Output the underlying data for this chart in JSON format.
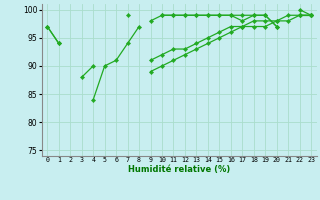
{
  "xlabel": "Humidité relative (%)",
  "bg_color": "#c8eef0",
  "grid_color": "#aaddcc",
  "line_color": "#22aa22",
  "xlim": [
    -0.5,
    23.5
  ],
  "ylim": [
    74,
    101
  ],
  "yticks": [
    75,
    80,
    85,
    90,
    95,
    100
  ],
  "xtick_labels": [
    "0",
    "1",
    "2",
    "3",
    "4",
    "5",
    "6",
    "7",
    "8",
    "9",
    "10",
    "11",
    "12",
    "13",
    "14",
    "15",
    "16",
    "17",
    "18",
    "19",
    "20",
    "21",
    "22",
    "23"
  ],
  "series": [
    [
      97,
      94,
      null,
      null,
      null,
      null,
      null,
      null,
      null,
      null,
      null,
      null,
      null,
      null,
      null,
      null,
      null,
      null,
      null,
      null,
      null,
      null,
      null,
      null
    ],
    [
      97,
      94,
      null,
      88,
      90,
      null,
      null,
      99,
      null,
      98,
      99,
      99,
      99,
      99,
      99,
      99,
      99,
      98,
      99,
      99,
      97,
      null,
      99,
      99
    ],
    [
      null,
      null,
      null,
      null,
      84,
      90,
      91,
      94,
      97,
      null,
      99,
      99,
      99,
      99,
      99,
      99,
      99,
      99,
      99,
      99,
      97,
      null,
      100,
      99
    ],
    [
      null,
      null,
      null,
      null,
      null,
      null,
      null,
      null,
      null,
      91,
      92,
      93,
      93,
      94,
      95,
      96,
      97,
      97,
      98,
      98,
      98,
      99,
      99,
      99
    ],
    [
      null,
      null,
      null,
      null,
      null,
      null,
      null,
      null,
      null,
      89,
      90,
      91,
      92,
      93,
      94,
      95,
      96,
      97,
      97,
      97,
      98,
      98,
      99,
      99
    ]
  ]
}
